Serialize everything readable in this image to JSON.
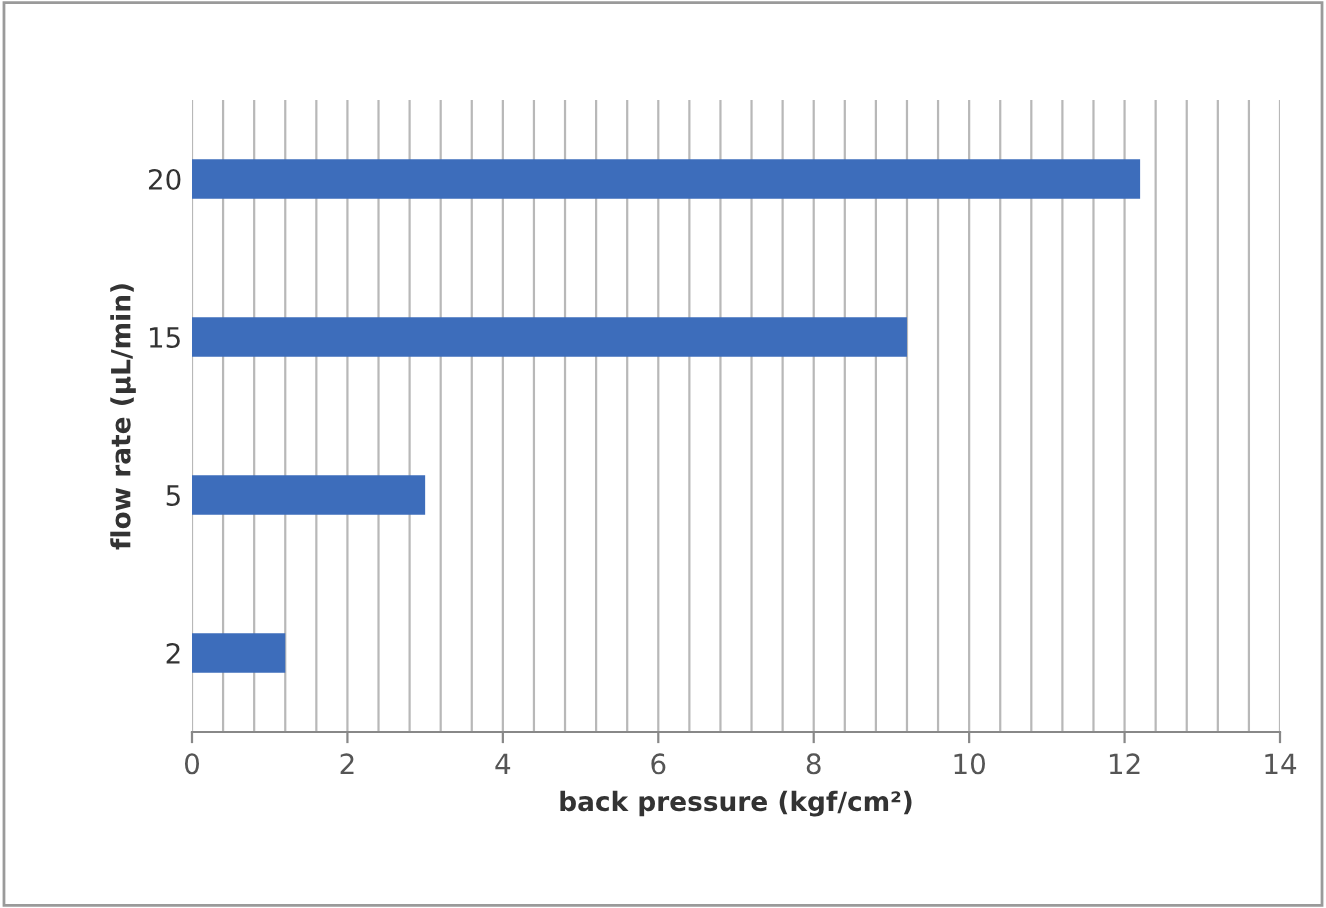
{
  "chart_data": {
    "type": "bar",
    "orientation": "horizontal",
    "categories": [
      "20",
      "15",
      "5",
      "2"
    ],
    "values": [
      12.2,
      9.2,
      3.0,
      1.2
    ],
    "color": "#3d6dbb",
    "xlabel": "back pressure (kgf/cm²)",
    "ylabel": "flow rate (µL/min)",
    "xlim": [
      0,
      14
    ],
    "xticks": [
      0,
      2,
      4,
      6,
      8,
      10,
      12,
      14
    ],
    "grid": "x"
  }
}
